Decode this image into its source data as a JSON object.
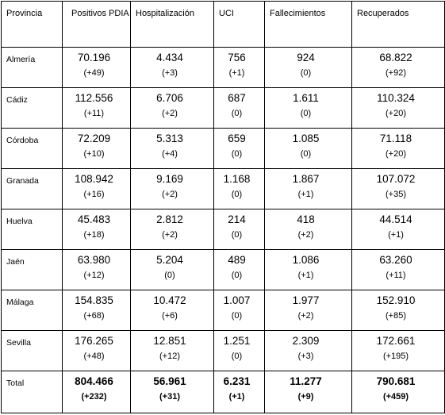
{
  "headers": [
    "Provincia",
    "Positivos PDIA",
    "Hospitalización",
    "UCI",
    "Fallecimientos",
    "Recuperados"
  ],
  "rows": [
    {
      "provincia": "Almería",
      "cells": [
        [
          "70.196",
          "(+49)"
        ],
        [
          "4.434",
          "(+3)"
        ],
        [
          "756",
          "(+1)"
        ],
        [
          "924",
          "(0)"
        ],
        [
          "68.822",
          "(+92)"
        ]
      ]
    },
    {
      "provincia": "Cádiz",
      "cells": [
        [
          "112.556",
          "(+11)"
        ],
        [
          "6.706",
          "(+2)"
        ],
        [
          "687",
          "(0)"
        ],
        [
          "1.611",
          "(0)"
        ],
        [
          "110.324",
          "(+20)"
        ]
      ]
    },
    {
      "provincia": "Córdoba",
      "cells": [
        [
          "72.209",
          "(+10)"
        ],
        [
          "5.313",
          "(+4)"
        ],
        [
          "659",
          "(0)"
        ],
        [
          "1.085",
          "(0)"
        ],
        [
          "71.118",
          "(+20)"
        ]
      ]
    },
    {
      "provincia": "Granada",
      "cells": [
        [
          "108.942",
          "(+16)"
        ],
        [
          "9.169",
          "(+2)"
        ],
        [
          "1.168",
          "(0)"
        ],
        [
          "1.867",
          "(+1)"
        ],
        [
          "107.072",
          "(+35)"
        ]
      ]
    },
    {
      "provincia": "Huelva",
      "cells": [
        [
          "45.483",
          "(+18)"
        ],
        [
          "2.812",
          "(+2)"
        ],
        [
          "214",
          "(0)"
        ],
        [
          "418",
          "(+2)"
        ],
        [
          "44.514",
          "(+1)"
        ]
      ]
    },
    {
      "provincia": "Jaén",
      "cells": [
        [
          "63.980",
          "(+12)"
        ],
        [
          "5.204",
          "(0)"
        ],
        [
          "489",
          "(0)"
        ],
        [
          "1.086",
          "(+1)"
        ],
        [
          "63.260",
          "(+11)"
        ]
      ]
    },
    {
      "provincia": "Málaga",
      "cells": [
        [
          "154.835",
          "(+68)"
        ],
        [
          "10.472",
          "(+6)"
        ],
        [
          "1.007",
          "(0)"
        ],
        [
          "1.977",
          "(+2)"
        ],
        [
          "152.910",
          "(+85)"
        ]
      ]
    },
    {
      "provincia": "Sevilla",
      "cells": [
        [
          "176.265",
          "(+48)"
        ],
        [
          "12.851",
          "(+12)"
        ],
        [
          "1.251",
          "(0)"
        ],
        [
          "2.309",
          "(+3)"
        ],
        [
          "172.661",
          "(+195)"
        ]
      ]
    }
  ],
  "total": {
    "provincia": "Total",
    "cells": [
      [
        "804.466",
        "(+232)"
      ],
      [
        "56.961",
        "(+31)"
      ],
      [
        "6.231",
        "(+1)"
      ],
      [
        "11.277",
        "(+9)"
      ],
      [
        "790.681",
        "(+459)"
      ]
    ]
  }
}
